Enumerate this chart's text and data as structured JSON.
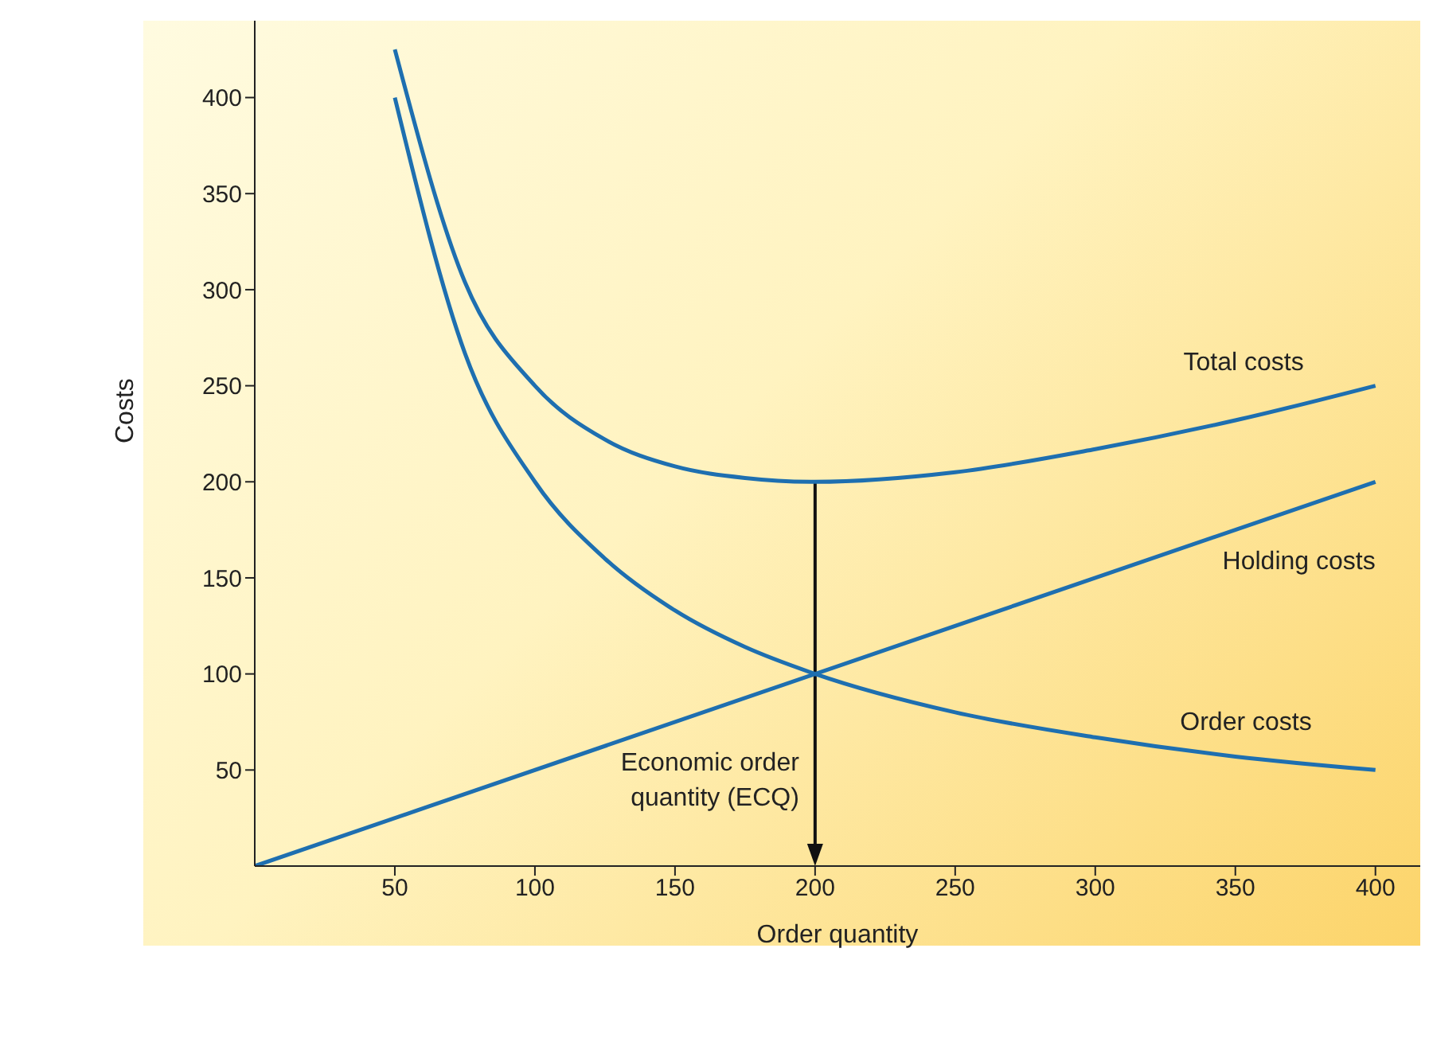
{
  "chart_data": {
    "type": "line",
    "xlabel": "Order quantity",
    "ylabel": "Costs",
    "xlim": [
      0,
      416
    ],
    "ylim": [
      0,
      440
    ],
    "xticks": [
      50,
      100,
      150,
      200,
      250,
      300,
      350,
      400
    ],
    "yticks": [
      50,
      100,
      150,
      200,
      250,
      300,
      350,
      400
    ],
    "marker": "none",
    "line_style": "solid",
    "series": [
      {
        "name": "Total costs",
        "color": "#1e6fb0",
        "x": [
          50,
          75,
          100,
          125,
          150,
          175,
          200,
          250,
          300,
          350,
          400
        ],
        "values": [
          425,
          304,
          250,
          222,
          208,
          202,
          200,
          205,
          217,
          232,
          250
        ]
      },
      {
        "name": "Holding costs",
        "color": "#1e6fb0",
        "x": [
          0,
          400
        ],
        "values": [
          0,
          200
        ]
      },
      {
        "name": "Order costs",
        "color": "#1e6fb0",
        "x": [
          50,
          75,
          100,
          125,
          150,
          175,
          200,
          250,
          300,
          350,
          400
        ],
        "values": [
          400,
          267,
          200,
          160,
          133,
          114,
          100,
          80,
          67,
          57,
          50
        ]
      }
    ],
    "annotations": [
      "Economic order quantity (ECQ)"
    ]
  }
}
